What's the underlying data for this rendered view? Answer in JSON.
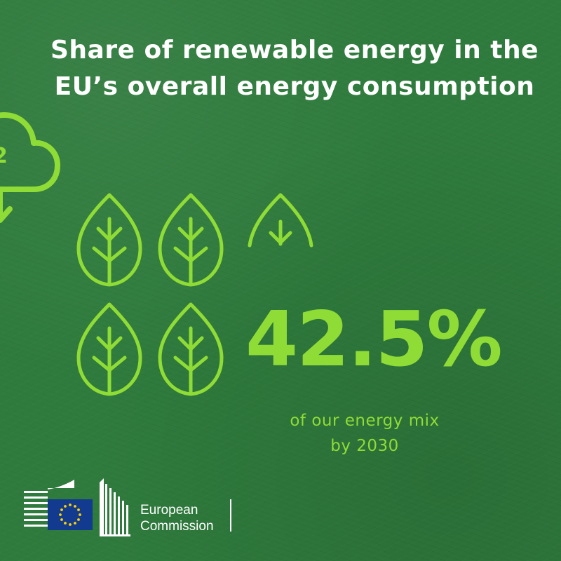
{
  "title": {
    "line1": "Share of renewable energy in the",
    "line2": "EU’s overall energy consumption"
  },
  "co2_fragment": "2",
  "stat": {
    "value": "42.5%",
    "caption_line1": "of our energy mix",
    "caption_line2": "by 2030"
  },
  "leaves_shown": 4.5,
  "footer": {
    "org_line1": "European",
    "org_line2": "Commission"
  },
  "colors": {
    "background": "#2f7b3d",
    "accent": "#8fdc36",
    "text": "#ffffff",
    "eu_blue": "#123a8f",
    "eu_gold": "#ffd200"
  }
}
